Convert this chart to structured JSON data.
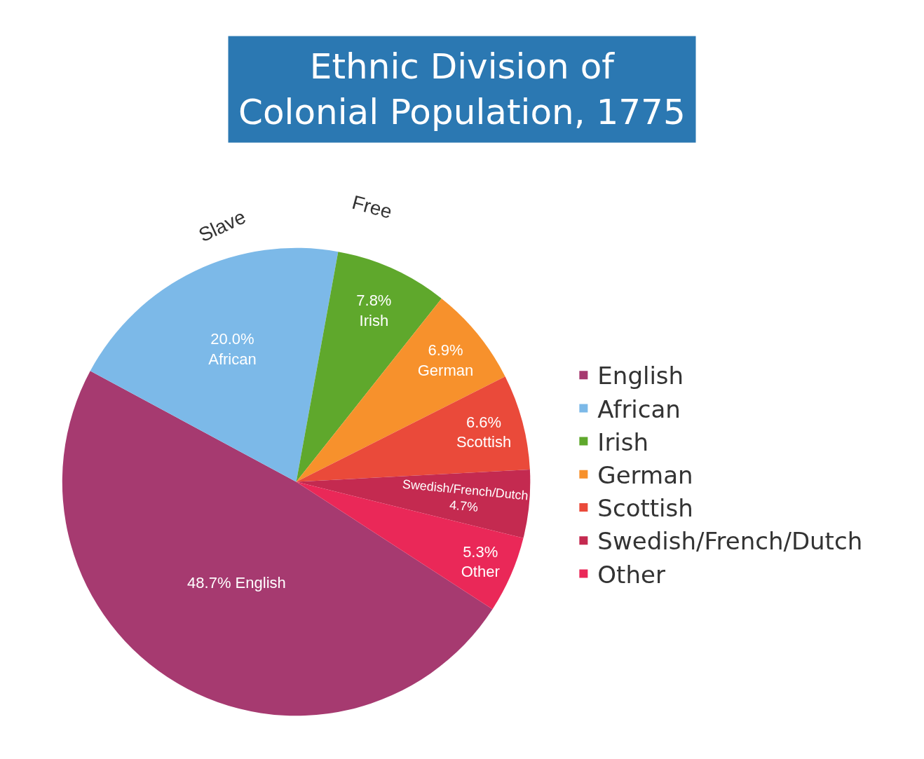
{
  "chart_data": {
    "type": "pie",
    "title": "Ethnic Division of\nColonial Population, 1775",
    "categories": [
      "English",
      "African",
      "Irish",
      "German",
      "Scottish",
      "Swedish/French/Dutch",
      "Other"
    ],
    "values": [
      48.7,
      20.0,
      7.8,
      6.9,
      6.6,
      4.7,
      5.3
    ],
    "colors": [
      "#a63a70",
      "#7cb9e8",
      "#5fa82c",
      "#f7912c",
      "#ea4a3a",
      "#c42a50",
      "#ea2858"
    ],
    "value_labels": [
      "48.7% English",
      "20.0%\nAfrican",
      "7.8%\nIrish",
      "6.9%\nGerman",
      "6.6%\nScottish",
      "Swedish/French/Dutch\n4.7%",
      "5.3%\nOther"
    ],
    "annotations": [
      "Slave",
      "Free"
    ],
    "legend": "right"
  }
}
